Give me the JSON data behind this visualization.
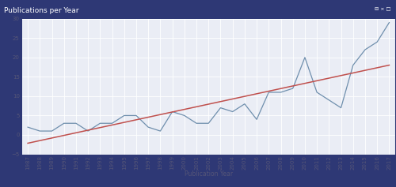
{
  "years": [
    1987,
    1988,
    1989,
    1990,
    1991,
    1992,
    1993,
    1994,
    1995,
    1996,
    1997,
    1998,
    1999,
    2000,
    2001,
    2002,
    2003,
    2004,
    2005,
    2006,
    2007,
    2008,
    2009,
    2010,
    2011,
    2012,
    2013,
    2014,
    2015,
    2016,
    2017
  ],
  "values": [
    2,
    1,
    1,
    3,
    3,
    1,
    3,
    3,
    5,
    5,
    2,
    1,
    6,
    5,
    3,
    3,
    7,
    6,
    8,
    4,
    11,
    11,
    12,
    20,
    11,
    9,
    7,
    18,
    22,
    24,
    29
  ],
  "title": "Publications per Year",
  "xlabel": "Publication Year",
  "ylim": [
    -5,
    30
  ],
  "yticks": [
    -5,
    0,
    5,
    10,
    15,
    20,
    25,
    30
  ],
  "bg_color": "#eaedf5",
  "title_bar_color": "#2e3875",
  "title_text_color": "#ffffff",
  "line_color": "#6f8fad",
  "trend_color": "#c0504d",
  "grid_color": "#ffffff",
  "border_color": "#2e3875",
  "tick_color": "#555577",
  "title_fontsize": 6.5,
  "tick_fontsize": 5.0,
  "xlabel_fontsize": 5.5
}
